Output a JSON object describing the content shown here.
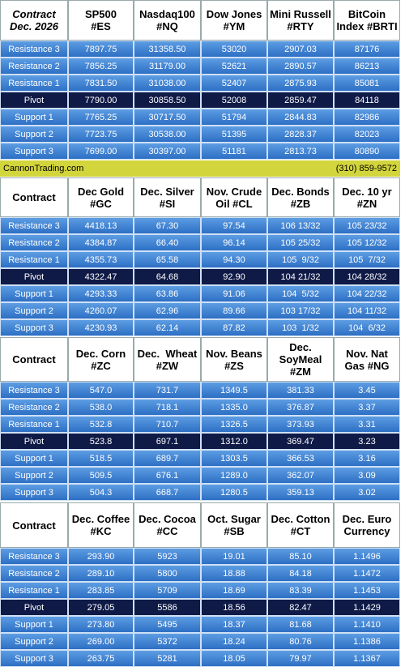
{
  "blocks": [
    {
      "header": [
        [
          "Contract",
          "Dec. 2026"
        ],
        [
          "SP500",
          "#ES"
        ],
        [
          "Nasdaq100",
          "#NQ"
        ],
        [
          "Dow Jones",
          "#YM"
        ],
        [
          "Mini Russell",
          "#RTY"
        ],
        [
          "BitCoin",
          "Index #BRTI"
        ]
      ],
      "rows": [
        [
          "Resistance 3",
          "7897.75",
          "31358.50",
          "53020",
          "2907.03",
          "87176"
        ],
        [
          "Resistance 2",
          "7856.25",
          "31179.00",
          "52621",
          "2890.57",
          "86213"
        ],
        [
          "Resistance 1",
          "7831.50",
          "31038.00",
          "52407",
          "2875.93",
          "85081"
        ],
        [
          "Pivot",
          "7790.00",
          "30858.50",
          "52008",
          "2859.47",
          "84118"
        ],
        [
          "Support 1",
          "7765.25",
          "30717.50",
          "51794",
          "2844.83",
          "82986"
        ],
        [
          "Support 2",
          "7723.75",
          "30538.00",
          "51395",
          "2828.37",
          "82023"
        ],
        [
          "Support 3",
          "7699.00",
          "30397.00",
          "51181",
          "2813.73",
          "80890"
        ]
      ]
    },
    {
      "header": [
        [
          "Contract"
        ],
        [
          "Dec Gold",
          "#GC"
        ],
        [
          "Dec. Silver",
          "#SI"
        ],
        [
          "Nov. Crude",
          "Oil #CL"
        ],
        [
          "Dec. Bonds",
          "#ZB"
        ],
        [
          "Dec. 10 yr",
          "#ZN"
        ]
      ],
      "rows": [
        [
          "Resistance 3",
          "4418.13",
          "67.30",
          "97.54",
          "106 13/32",
          "105 23/32"
        ],
        [
          "Resistance 2",
          "4384.87",
          "66.40",
          "96.14",
          "105 25/32",
          "105 12/32"
        ],
        [
          "Resistance 1",
          "4355.73",
          "65.58",
          "94.30",
          "105  9/32",
          "105  7/32"
        ],
        [
          "Pivot",
          "4322.47",
          "64.68",
          "92.90",
          "104 21/32",
          "104 28/32"
        ],
        [
          "Support 1",
          "4293.33",
          "63.86",
          "91.06",
          "104  5/32",
          "104 22/32"
        ],
        [
          "Support 2",
          "4260.07",
          "62.96",
          "89.66",
          "103 17/32",
          "104 11/32"
        ],
        [
          "Support 3",
          "4230.93",
          "62.14",
          "87.82",
          "103  1/32",
          "104  6/32"
        ]
      ]
    },
    {
      "header": [
        [
          "Contract"
        ],
        [
          "Dec. Corn",
          "#ZC"
        ],
        [
          "Dec.  Wheat",
          "#ZW"
        ],
        [
          "Nov. Beans",
          "#ZS"
        ],
        [
          "Dec.",
          "SoyMeal",
          "#ZM"
        ],
        [
          "Nov. Nat",
          "Gas #NG"
        ]
      ],
      "rows": [
        [
          "Resistance 3",
          "547.0",
          "731.7",
          "1349.5",
          "381.33",
          "3.45"
        ],
        [
          "Resistance 2",
          "538.0",
          "718.1",
          "1335.0",
          "376.87",
          "3.37"
        ],
        [
          "Resistance 1",
          "532.8",
          "710.7",
          "1326.5",
          "373.93",
          "3.31"
        ],
        [
          "Pivot",
          "523.8",
          "697.1",
          "1312.0",
          "369.47",
          "3.23"
        ],
        [
          "Support 1",
          "518.5",
          "689.7",
          "1303.5",
          "366.53",
          "3.16"
        ],
        [
          "Support 2",
          "509.5",
          "676.1",
          "1289.0",
          "362.07",
          "3.09"
        ],
        [
          "Support 3",
          "504.3",
          "668.7",
          "1280.5",
          "359.13",
          "3.02"
        ]
      ]
    },
    {
      "header": [
        [
          "Contract"
        ],
        [
          "Dec. Coffee",
          "#KC"
        ],
        [
          "Dec. Cocoa",
          "#CC"
        ],
        [
          "Oct. Sugar",
          "#SB"
        ],
        [
          "Dec. Cotton",
          "#CT"
        ],
        [
          "Dec. Euro",
          "Currency"
        ]
      ],
      "rows": [
        [
          "Resistance 3",
          "293.90",
          "5923",
          "19.01",
          "85.10",
          "1.1496"
        ],
        [
          "Resistance 2",
          "289.10",
          "5800",
          "18.88",
          "84.18",
          "1.1472"
        ],
        [
          "Resistance 1",
          "283.85",
          "5709",
          "18.69",
          "83.39",
          "1.1453"
        ],
        [
          "Pivot",
          "279.05",
          "5586",
          "18.56",
          "82.47",
          "1.1429"
        ],
        [
          "Support 1",
          "273.80",
          "5495",
          "18.37",
          "81.68",
          "1.1410"
        ],
        [
          "Support 2",
          "269.00",
          "5372",
          "18.24",
          "80.76",
          "1.1386"
        ],
        [
          "Support 3",
          "263.75",
          "5281",
          "18.05",
          "79.97",
          "1.1367"
        ]
      ]
    }
  ],
  "banner": {
    "site": "CannonTrading.com",
    "phone": "(310) 859-9572"
  }
}
